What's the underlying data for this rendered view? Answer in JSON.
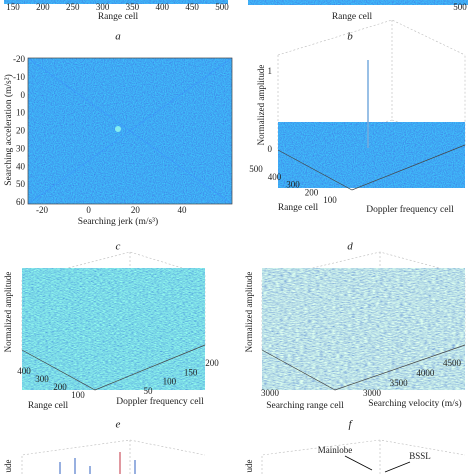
{
  "panels": [
    {
      "caption": "a",
      "x_axis": {
        "label": "Range cell",
        "ticks": [
          150,
          200,
          250,
          300,
          350,
          400,
          450,
          500
        ]
      }
    },
    {
      "caption": "b",
      "x_axis": {
        "label": "Range cell",
        "ticks": [
          500
        ]
      }
    },
    {
      "caption": "c",
      "x_axis": {
        "label": "Searching jerk (m/s³)",
        "ticks": [
          -20,
          0,
          20,
          40
        ]
      },
      "y_axis": {
        "label": "Searching acceleration (m/s²)",
        "ticks": [
          -20,
          -10,
          0,
          10,
          20,
          30,
          40,
          50,
          60
        ]
      }
    },
    {
      "caption": "d",
      "z_axis": {
        "label": "Normalized amplitude",
        "ticks": [
          1,
          0
        ]
      },
      "y_axis": {
        "label": "Range cell",
        "ticks": [
          500,
          400,
          300,
          200,
          100
        ]
      },
      "x_axis": {
        "label": "Doppler frequency cell"
      }
    },
    {
      "caption": "e",
      "z_axis": {
        "label": "Normalized amplitude"
      },
      "y_axis": {
        "label": "Range cell",
        "ticks": [
          400,
          300,
          200,
          100
        ]
      },
      "x_axis": {
        "label": "Doppler frequency cell",
        "ticks": [
          50,
          100,
          150,
          200
        ]
      }
    },
    {
      "caption": "f",
      "z_axis": {
        "label": "Normalized amplitude"
      },
      "y_axis": {
        "label": "Searching range cell",
        "ticks": [
          3000
        ]
      },
      "x_axis": {
        "label": "Searching velocity (m/s)",
        "ticks": [
          3000,
          3500,
          4000,
          4500
        ]
      }
    },
    {
      "z_axis": {
        "label": "ude"
      }
    },
    {
      "z_axis": {
        "label": "ude"
      },
      "annotations": [
        "Mainlobe",
        "BSSL"
      ]
    }
  ]
}
